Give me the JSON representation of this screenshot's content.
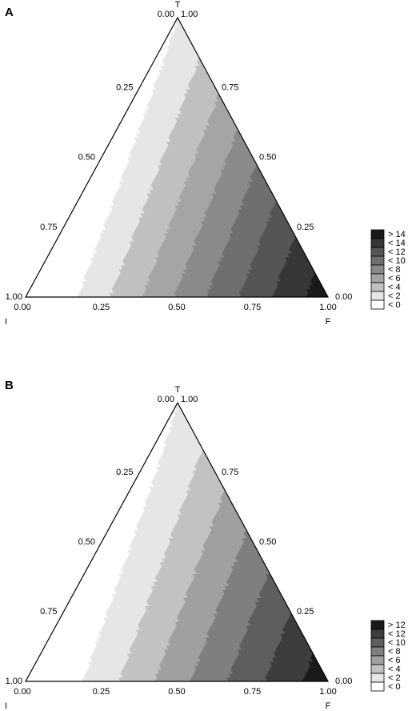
{
  "chart_data": [
    {
      "type": "ternary-contour",
      "panel_label": "A",
      "vertices": {
        "top": "T",
        "left": "I",
        "right": "F"
      },
      "axis_ticks": {
        "left_edge": [
          "0.25",
          "0.50",
          "0.75"
        ],
        "right_edge": [
          "0.75",
          "0.50",
          "0.25"
        ],
        "bottom_edge": [
          "0.25",
          "0.50",
          "0.75"
        ],
        "corner_top": [
          "0.00",
          "1.00"
        ],
        "corner_left": [
          "1.00",
          "0.00"
        ],
        "corner_right": [
          "1.00",
          "0.00"
        ]
      },
      "legend": [
        "> 14",
        "< 14",
        "< 12",
        "< 10",
        "< 8",
        "< 6",
        "< 4",
        "< 2",
        "< 0"
      ],
      "legend_colors": [
        "#1a1a1a",
        "#363636",
        "#555555",
        "#6f6f6f",
        "#8a8a8a",
        "#a5a5a5",
        "#c0c0c0",
        "#e6e6e6",
        "#ffffff"
      ],
      "contour_levels": [
        0,
        2,
        4,
        6,
        8,
        10,
        12,
        14
      ],
      "z_min": -0.5,
      "z_max": 15,
      "legend_placement": "right"
    },
    {
      "type": "ternary-contour",
      "panel_label": "B",
      "vertices": {
        "top": "T",
        "left": "I",
        "right": "F"
      },
      "axis_ticks": {
        "left_edge": [
          "0.25",
          "0.50",
          "0.75"
        ],
        "right_edge": [
          "0.75",
          "0.50",
          "0.25"
        ],
        "bottom_edge": [
          "0.25",
          "0.50",
          "0.75"
        ],
        "corner_top": [
          "0.00",
          "1.00"
        ],
        "corner_left": [
          "1.00",
          "0.00"
        ],
        "corner_right": [
          "1.00",
          "0.00"
        ]
      },
      "legend": [
        "> 12",
        "< 12",
        "< 10",
        "< 8",
        "< 6",
        "< 4",
        "< 2",
        "< 0"
      ],
      "legend_colors": [
        "#1a1a1a",
        "#3d3d3d",
        "#5e5e5e",
        "#7f7f7f",
        "#a0a0a0",
        "#c2c2c2",
        "#e6e6e6",
        "#ffffff"
      ],
      "contour_levels": [
        0,
        2,
        4,
        6,
        8,
        10,
        12
      ],
      "z_min": -0.5,
      "z_max": 13,
      "legend_placement": "right"
    }
  ]
}
